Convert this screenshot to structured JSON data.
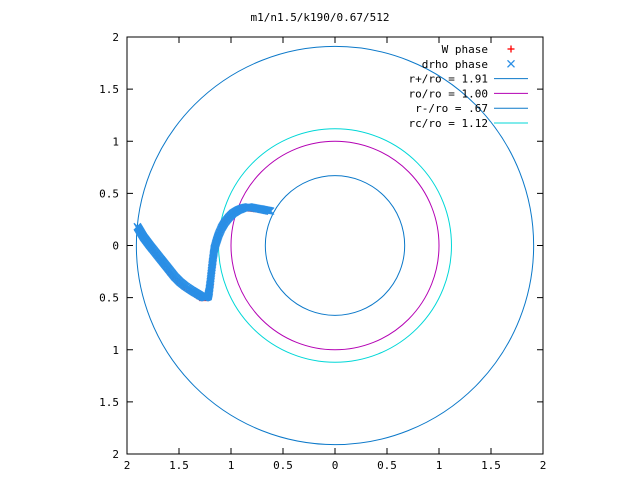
{
  "chart_data": {
    "type": "scatter",
    "title": "m1/n1.5/k190/0.67/512",
    "xlim": [
      -2,
      2
    ],
    "ylim": [
      -2,
      2
    ],
    "x_ticks": [
      {
        "v": -2,
        "label": "2"
      },
      {
        "v": -1.5,
        "label": "1.5"
      },
      {
        "v": -1,
        "label": "1"
      },
      {
        "v": -0.5,
        "label": "0.5"
      },
      {
        "v": 0,
        "label": "0"
      },
      {
        "v": 0.5,
        "label": "0.5"
      },
      {
        "v": 1,
        "label": "1"
      },
      {
        "v": 1.5,
        "label": "1.5"
      },
      {
        "v": 2,
        "label": "2"
      }
    ],
    "y_ticks": [
      {
        "v": 2,
        "label": "2"
      },
      {
        "v": 1.5,
        "label": "1.5"
      },
      {
        "v": 1,
        "label": "1"
      },
      {
        "v": 0.5,
        "label": "0.5"
      },
      {
        "v": 0,
        "label": "0"
      },
      {
        "v": -0.5,
        "label": "0.5"
      },
      {
        "v": -1,
        "label": "1"
      },
      {
        "v": -1.5,
        "label": "1.5"
      },
      {
        "v": -2,
        "label": "2"
      }
    ],
    "legend_position": "top-right",
    "grid": false,
    "circles": [
      {
        "name": "r+/ro = 1.91",
        "r": 1.91,
        "color": "#0b78c9"
      },
      {
        "name": "ro/ro = 1.00",
        "r": 1.0,
        "color": "#b300b3"
      },
      {
        "name": "r-/ro = .67",
        "r": 0.67,
        "color": "#0b78c9"
      },
      {
        "name": "rc/ro = 1.12",
        "r": 1.12,
        "color": "#00d7d7"
      }
    ],
    "series": [
      {
        "name": "W phase",
        "marker": "+",
        "color": "#ff0000",
        "points": [
          [
            -1.88,
            0.16
          ],
          [
            -1.8,
            0.03
          ],
          [
            -1.7,
            -0.12
          ],
          [
            -1.58,
            -0.28
          ],
          [
            -1.45,
            -0.4
          ],
          [
            -1.3,
            -0.5
          ],
          [
            -1.22,
            -0.5
          ],
          [
            -1.2,
            -0.38
          ],
          [
            -1.18,
            -0.15
          ],
          [
            -1.15,
            0.0
          ],
          [
            -1.1,
            0.15
          ],
          [
            -1.05,
            0.25
          ],
          [
            -0.95,
            0.33
          ],
          [
            -0.85,
            0.36
          ],
          [
            -0.75,
            0.35
          ],
          [
            -0.65,
            0.33
          ]
        ]
      },
      {
        "name": "drho phase",
        "marker": "x",
        "color": "#2a8fe6",
        "points": [
          [
            -1.9,
            0.18
          ],
          [
            -1.87,
            0.13
          ],
          [
            -1.84,
            0.08
          ],
          [
            -1.81,
            0.04
          ],
          [
            -1.78,
            0.0
          ],
          [
            -1.74,
            -0.05
          ],
          [
            -1.7,
            -0.1
          ],
          [
            -1.66,
            -0.15
          ],
          [
            -1.62,
            -0.2
          ],
          [
            -1.58,
            -0.25
          ],
          [
            -1.54,
            -0.3
          ],
          [
            -1.49,
            -0.35
          ],
          [
            -1.44,
            -0.39
          ],
          [
            -1.38,
            -0.43
          ],
          [
            -1.33,
            -0.46
          ],
          [
            -1.28,
            -0.49
          ],
          [
            -1.25,
            -0.5
          ],
          [
            -1.22,
            -0.49
          ],
          [
            -1.21,
            -0.44
          ],
          [
            -1.2,
            -0.36
          ],
          [
            -1.19,
            -0.27
          ],
          [
            -1.18,
            -0.18
          ],
          [
            -1.17,
            -0.1
          ],
          [
            -1.16,
            -0.03
          ],
          [
            -1.14,
            0.04
          ],
          [
            -1.12,
            0.1
          ],
          [
            -1.09,
            0.17
          ],
          [
            -1.06,
            0.22
          ],
          [
            -1.02,
            0.27
          ],
          [
            -0.98,
            0.31
          ],
          [
            -0.93,
            0.34
          ],
          [
            -0.88,
            0.36
          ],
          [
            -0.83,
            0.37
          ],
          [
            -0.78,
            0.36
          ],
          [
            -0.72,
            0.35
          ],
          [
            -0.67,
            0.34
          ],
          [
            -0.62,
            0.33
          ]
        ]
      }
    ]
  }
}
